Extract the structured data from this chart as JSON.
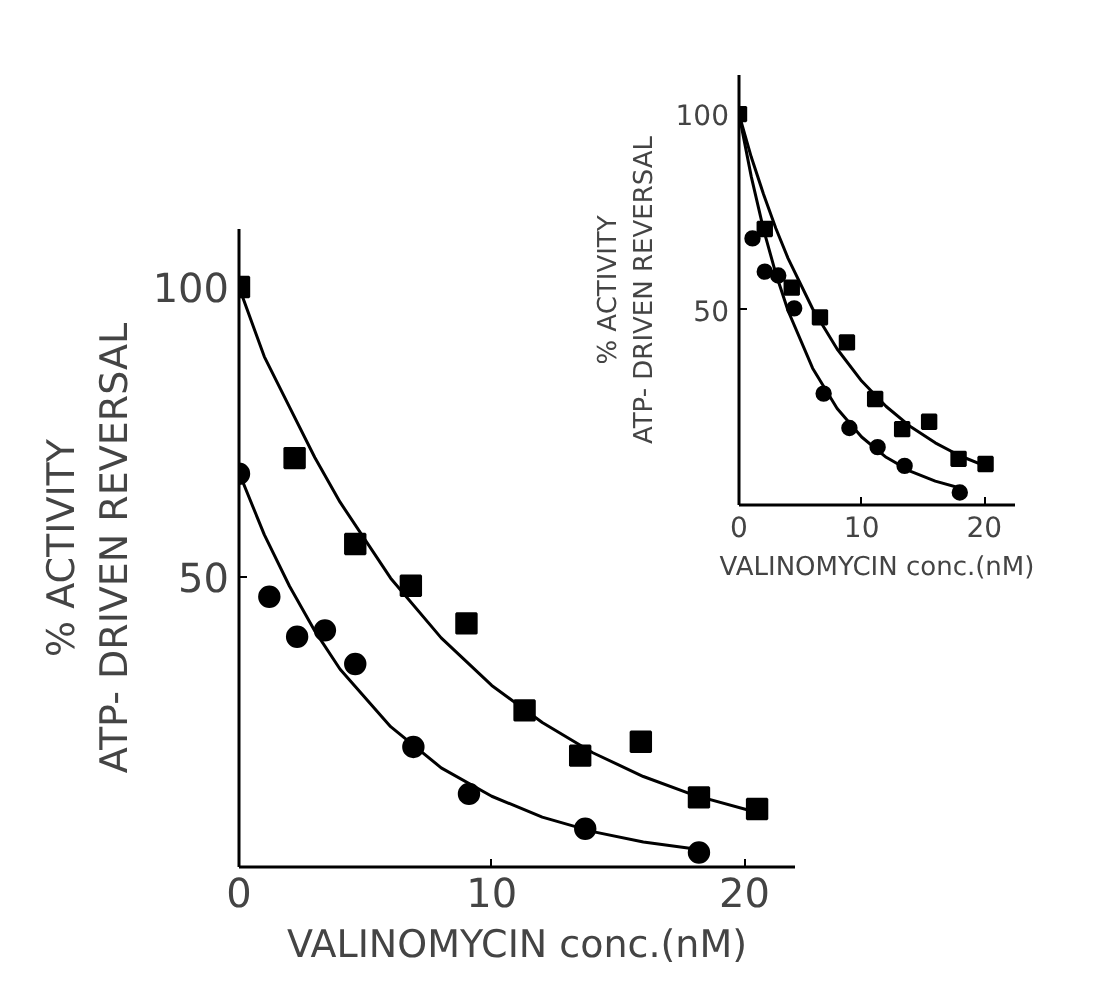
{
  "chart_data": [
    {
      "type": "scatter",
      "xlabel": "VALINOMYCIN conc.(nM)",
      "ylabel": "% ACTIVITY\nATP- DRIVEN REVERSAL",
      "xlim": [
        0,
        22
      ],
      "ylim": [
        0,
        110
      ],
      "xticks": [
        0,
        10,
        20
      ],
      "yticks": [
        50,
        100
      ],
      "grid": false,
      "series": [
        {
          "marker": "square",
          "color": "#000000",
          "x": [
            0,
            2.2,
            4.6,
            6.8,
            9.0,
            11.3,
            13.5,
            15.9,
            18.2,
            20.5
          ],
          "values": [
            100,
            70.5,
            55.7,
            48.5,
            42,
            27,
            19.2,
            21.6,
            12,
            10
          ]
        },
        {
          "marker": "circle",
          "color": "#000000",
          "x": [
            0,
            1.2,
            2.3,
            3.4,
            4.6,
            6.9,
            9.1,
            13.7,
            18.2
          ],
          "values": [
            67.8,
            46.6,
            39.7,
            40.8,
            35,
            20.7,
            12.6,
            6.6,
            2.5
          ]
        },
        {
          "type": "line",
          "color": "#000000",
          "x": [
            0,
            1,
            2,
            3,
            4,
            6,
            8,
            10,
            12,
            14,
            16,
            18,
            20.5
          ],
          "values": [
            100,
            88,
            79.3,
            70.6,
            62.9,
            49.8,
            39.5,
            31.3,
            24.9,
            19.7,
            15.6,
            12.4,
            9.4
          ]
        },
        {
          "type": "line",
          "color": "#000000",
          "x": [
            0,
            1,
            2,
            3,
            4,
            6,
            8,
            10,
            12,
            14,
            16,
            18.2
          ],
          "values": [
            68,
            57.3,
            48.4,
            40.7,
            34.1,
            24.2,
            17.1,
            12.2,
            8.6,
            6.1,
            4.3,
            3.0
          ]
        }
      ]
    },
    {
      "type": "scatter",
      "xlabel": "VALINOMYCIN conc.(nM)",
      "ylabel": "% ACTIVITY\nATP- DRIVEN REVERSAL",
      "xlim": [
        0,
        22.5
      ],
      "ylim": [
        0,
        110
      ],
      "xticks": [
        0,
        10,
        20
      ],
      "yticks": [
        50,
        100
      ],
      "grid": false,
      "series": [
        {
          "marker": "square",
          "color": "#000000",
          "x": [
            0,
            2.1,
            4.3,
            6.6,
            8.8,
            11.1,
            13.3,
            15.5,
            17.9,
            20.1
          ],
          "values": [
            100,
            70.6,
            55.6,
            48,
            41.6,
            27.1,
            19.4,
            21.3,
            11.8,
            10.5
          ]
        },
        {
          "marker": "circle",
          "color": "#000000",
          "x": [
            1.1,
            2.1,
            3.2,
            4.5,
            6.9,
            9.0,
            11.3,
            13.5,
            18.0
          ],
          "values": [
            68.2,
            59.7,
            58.7,
            50.3,
            28.5,
            19.7,
            14.8,
            10,
            3.2
          ]
        },
        {
          "type": "line",
          "color": "#000000",
          "x": [
            0,
            1,
            2,
            3,
            4,
            6,
            8,
            10,
            12,
            14,
            16,
            18,
            20.2
          ],
          "values": [
            100,
            89,
            79.5,
            70.8,
            63.1,
            50.2,
            39.9,
            31.7,
            25.2,
            20,
            15.9,
            12.6,
            9.8
          ]
        },
        {
          "type": "line",
          "color": "#000000",
          "x": [
            0,
            1,
            2,
            3,
            4,
            6,
            8,
            10,
            12,
            14,
            16,
            18.3
          ],
          "values": [
            100,
            84,
            70.5,
            59.2,
            49.7,
            35,
            24.7,
            17.4,
            12.2,
            8.6,
            6.1,
            4.1
          ]
        }
      ]
    }
  ]
}
